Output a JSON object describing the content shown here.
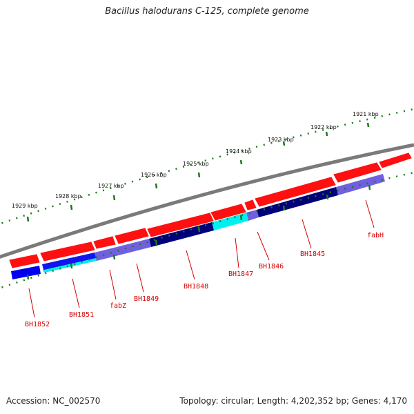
{
  "title": "Bacillus halodurans C-125, complete genome",
  "accession_text": "Accession: NC_002570",
  "summary_text": "Topology: circular; Length: 4,202,352 bp; Genes: 4,170",
  "colors": {
    "backbone": "#808080",
    "forward_gene": "#ff0000",
    "cog_blue": "#0000ff",
    "cog_cyan": "#00ffff",
    "cog_navy": "#000080",
    "cog_lavender": "#7b68ee",
    "tick": "#1a7a1a",
    "label": "#d40000"
  },
  "scale_ticks": [
    {
      "label": "1921 kbp"
    },
    {
      "label": "1922 kbp"
    },
    {
      "label": "1923 kbp"
    },
    {
      "label": "1924 kbp"
    },
    {
      "label": "1925 kbp"
    },
    {
      "label": "1926 kbp"
    },
    {
      "label": "1927 kbp"
    },
    {
      "label": "1928 kbp"
    },
    {
      "label": "1929 kbp"
    }
  ],
  "gene_labels": [
    "fabH",
    "BH1845",
    "BH1846",
    "BH1847",
    "BH1848",
    "BH1849",
    "fabZ",
    "BH1851",
    "BH1852"
  ]
}
